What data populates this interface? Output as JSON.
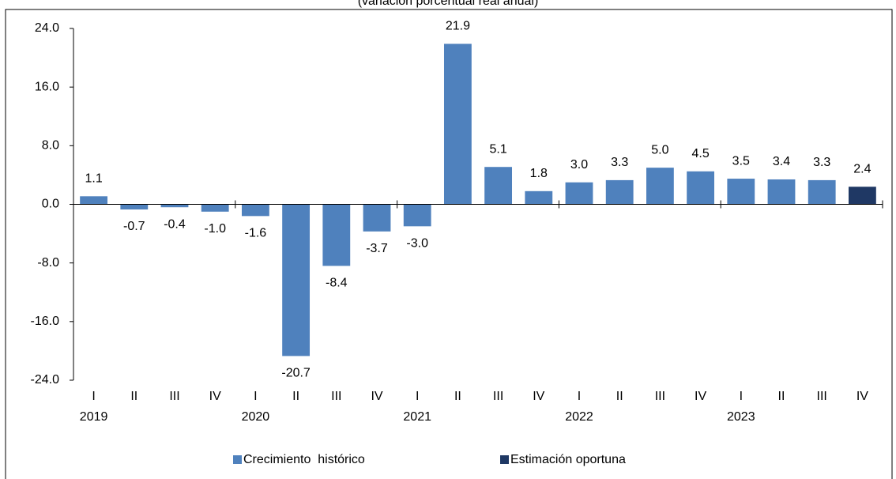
{
  "chart_data": {
    "type": "bar",
    "subtitle": "(variación porcentual real anual)",
    "categories": [
      "I",
      "II",
      "III",
      "IV",
      "I",
      "II",
      "III",
      "IV",
      "I",
      "II",
      "III",
      "IV",
      "I",
      "II",
      "III",
      "IV",
      "I",
      "II",
      "III",
      "IV"
    ],
    "years": [
      "2019",
      "2020",
      "2021",
      "2022",
      "2023"
    ],
    "series": [
      {
        "name": "Crecimiento  histórico",
        "color": "#4f81bd",
        "values": [
          1.1,
          -0.7,
          -0.4,
          -1.0,
          -1.6,
          -20.7,
          -8.4,
          -3.7,
          -3.0,
          21.9,
          5.1,
          1.8,
          3.0,
          3.3,
          5.0,
          4.5,
          3.5,
          3.4,
          3.3,
          null
        ],
        "value_labels": [
          "1.1",
          "-0.7",
          "-0.4",
          "-1.0",
          "-1.6",
          "-20.7",
          "-8.4",
          "-3.7",
          "-3.0",
          "21.9",
          "5.1",
          "1.8",
          "3.0",
          "3.3",
          "5.0",
          "4.5",
          "3.5",
          "3.4",
          "3.3",
          null
        ]
      },
      {
        "name": "Estimación oportuna",
        "color": "#1f3864",
        "values": [
          null,
          null,
          null,
          null,
          null,
          null,
          null,
          null,
          null,
          null,
          null,
          null,
          null,
          null,
          null,
          null,
          null,
          null,
          null,
          2.4
        ],
        "value_labels": [
          null,
          null,
          null,
          null,
          null,
          null,
          null,
          null,
          null,
          null,
          null,
          null,
          null,
          null,
          null,
          null,
          null,
          null,
          null,
          "2.4"
        ]
      }
    ],
    "ylim": [
      -24,
      24
    ],
    "yticks": [
      {
        "value": -24,
        "label": "-24.0"
      },
      {
        "value": -16,
        "label": "-16.0"
      },
      {
        "value": -8,
        "label": "-8.0"
      },
      {
        "value": 0,
        "label": "0.0"
      },
      {
        "value": 8,
        "label": "8.0"
      },
      {
        "value": 16,
        "label": "16.0"
      },
      {
        "value": 24,
        "label": "24.0"
      }
    ],
    "grid": false,
    "legend": "bottom"
  }
}
